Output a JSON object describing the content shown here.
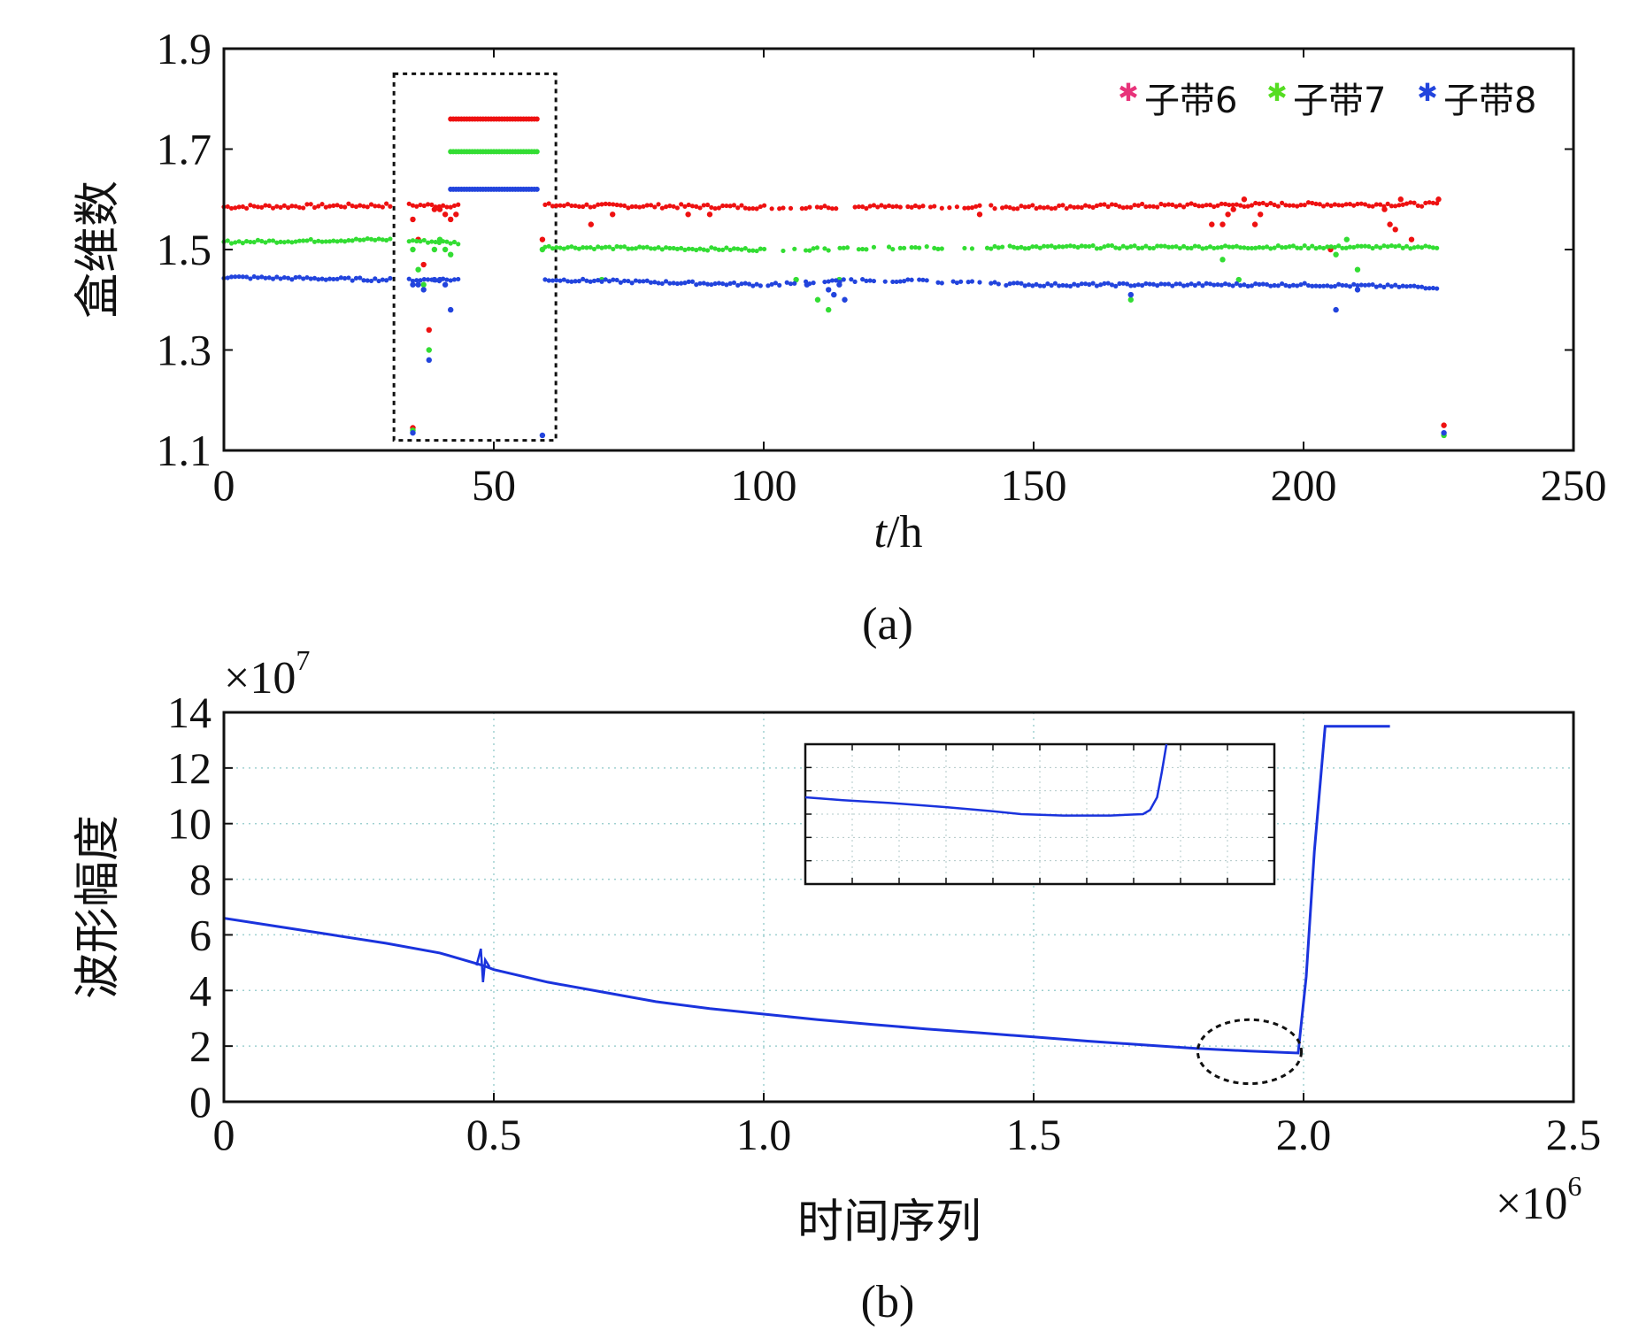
{
  "chart_data": [
    {
      "panel": "a",
      "type": "scatter",
      "caption": "(a)",
      "xlabel_italic": "t",
      "xlabel_unit": "/h",
      "ylabel": "盒维数",
      "xlim": [
        0,
        250
      ],
      "ylim": [
        1.1,
        1.9
      ],
      "xticks": [
        "0",
        "50",
        "100",
        "150",
        "200",
        "250"
      ],
      "yticks": [
        "1.1",
        "1.3",
        "1.5",
        "1.7",
        "1.9"
      ],
      "highlight_box_x": [
        31.5,
        61.5
      ],
      "highlight_box_y": [
        1.12,
        1.85
      ],
      "legend_position": "top-right",
      "series": [
        {
          "name": "子带6",
          "color": "#ee1111",
          "legend_color": "#e8337a",
          "base": [
            [
              0,
              1.585
            ],
            [
              30,
              1.588
            ],
            [
              60,
              1.588
            ],
            [
              100,
              1.585
            ],
            [
              150,
              1.585
            ],
            [
              200,
              1.59
            ],
            [
              225,
              1.59
            ]
          ],
          "gaps": [
            [
              31,
              34
            ],
            [
              44,
              59
            ]
          ],
          "noise": 0.004,
          "extra": [
            [
              35,
              1.56
            ],
            [
              36,
              1.52
            ],
            [
              37,
              1.47
            ],
            [
              38,
              1.34
            ],
            [
              39,
              1.58
            ],
            [
              40,
              1.58
            ],
            [
              41,
              1.57
            ],
            [
              42,
              1.56
            ],
            [
              43,
              1.57
            ],
            [
              35,
              1.145
            ],
            [
              59,
              1.52
            ],
            [
              68,
              1.55
            ],
            [
              72,
              1.57
            ],
            [
              86,
              1.57
            ],
            [
              90,
              1.57
            ],
            [
              140,
              1.57
            ],
            [
              183,
              1.55
            ],
            [
              185,
              1.55
            ],
            [
              186,
              1.57
            ],
            [
              187,
              1.58
            ],
            [
              189,
              1.6
            ],
            [
              191,
              1.55
            ],
            [
              192,
              1.57
            ],
            [
              205,
              1.5
            ],
            [
              215,
              1.58
            ],
            [
              216,
              1.55
            ],
            [
              217,
              1.54
            ],
            [
              218,
              1.6
            ],
            [
              220,
              1.52
            ],
            [
              225,
              1.6
            ],
            [
              226,
              1.15
            ]
          ],
          "line": {
            "x": [
              42,
              58
            ],
            "y": 1.76
          }
        },
        {
          "name": "子带7",
          "color": "#33dd33",
          "legend_color": "#55dd22",
          "base": [
            [
              0,
              1.515
            ],
            [
              30,
              1.52
            ],
            [
              60,
              1.505
            ],
            [
              100,
              1.5
            ],
            [
              150,
              1.505
            ],
            [
              200,
              1.505
            ],
            [
              225,
              1.505
            ]
          ],
          "gaps": [
            [
              31,
              34
            ],
            [
              44,
              59
            ]
          ],
          "noise": 0.003,
          "extra": [
            [
              35,
              1.5
            ],
            [
              36,
              1.46
            ],
            [
              37,
              1.43
            ],
            [
              38,
              1.3
            ],
            [
              39,
              1.5
            ],
            [
              40,
              1.52
            ],
            [
              41,
              1.5
            ],
            [
              42,
              1.49
            ],
            [
              35,
              1.14
            ],
            [
              59,
              1.5
            ],
            [
              70,
              1.44
            ],
            [
              106,
              1.44
            ],
            [
              110,
              1.4
            ],
            [
              112,
              1.38
            ],
            [
              114,
              1.44
            ],
            [
              168,
              1.4
            ],
            [
              185,
              1.48
            ],
            [
              188,
              1.44
            ],
            [
              206,
              1.49
            ],
            [
              208,
              1.52
            ],
            [
              210,
              1.46
            ],
            [
              226,
              1.13
            ]
          ],
          "line": {
            "x": [
              42,
              58
            ],
            "y": 1.695
          }
        },
        {
          "name": "子带8",
          "color": "#2244dd",
          "legend_color": "#2244dd",
          "base": [
            [
              0,
              1.445
            ],
            [
              30,
              1.44
            ],
            [
              60,
              1.44
            ],
            [
              100,
              1.43
            ],
            [
              120,
              1.44
            ],
            [
              150,
              1.43
            ],
            [
              200,
              1.43
            ],
            [
              225,
              1.425
            ]
          ],
          "gaps": [
            [
              31,
              34
            ],
            [
              44,
              59
            ]
          ],
          "noise": 0.003,
          "extra": [
            [
              35,
              1.43
            ],
            [
              36,
              1.43
            ],
            [
              37,
              1.42
            ],
            [
              38,
              1.28
            ],
            [
              39,
              1.44
            ],
            [
              40,
              1.44
            ],
            [
              41,
              1.43
            ],
            [
              42,
              1.38
            ],
            [
              35,
              1.135
            ],
            [
              59,
              1.13
            ],
            [
              108,
              1.43
            ],
            [
              112,
              1.42
            ],
            [
              113,
              1.41
            ],
            [
              114,
              1.43
            ],
            [
              115,
              1.4
            ],
            [
              168,
              1.41
            ],
            [
              206,
              1.38
            ],
            [
              210,
              1.42
            ],
            [
              226,
              1.135
            ]
          ],
          "line": {
            "x": [
              42,
              58
            ],
            "y": 1.62
          }
        }
      ]
    },
    {
      "panel": "b",
      "type": "line",
      "caption": "(b)",
      "xlabel": "时间序列",
      "ylabel": "波形幅度",
      "y_multiplier": "×10",
      "y_multiplier_exp": "7",
      "x_multiplier": "×10",
      "x_multiplier_exp": "6",
      "xlim": [
        0,
        2.5
      ],
      "ylim": [
        0,
        14
      ],
      "xticks": [
        "0",
        "0.5",
        "1.0",
        "1.5",
        "2.0",
        "2.5"
      ],
      "yticks": [
        "0",
        "2",
        "4",
        "6",
        "8",
        "10",
        "12",
        "14"
      ],
      "color": "#1a33dd",
      "series": [
        {
          "name": "波形幅度",
          "x": [
            0,
            0.1,
            0.2,
            0.3,
            0.4,
            0.48,
            0.5,
            0.6,
            0.7,
            0.8,
            0.9,
            1.0,
            1.1,
            1.2,
            1.3,
            1.4,
            1.5,
            1.6,
            1.7,
            1.8,
            1.9,
            1.99,
            2.005,
            2.02,
            2.04,
            2.16
          ],
          "y": [
            6.6,
            6.3,
            6.0,
            5.7,
            5.35,
            4.9,
            4.75,
            4.3,
            3.95,
            3.6,
            3.35,
            3.15,
            2.95,
            2.78,
            2.62,
            2.48,
            2.33,
            2.18,
            2.05,
            1.92,
            1.82,
            1.75,
            4.5,
            9.0,
            13.5,
            13.5
          ]
        }
      ],
      "spike": {
        "x": 0.48,
        "ymin": 4.3,
        "ymax": 5.5
      },
      "ellipse_region": {
        "cx": 1.9,
        "cy": 1.8,
        "rx": 0.096,
        "ry": 1.15
      },
      "inset": {
        "x": [
          0,
          0.08,
          0.18,
          0.3,
          0.4,
          0.46,
          0.55,
          0.65,
          0.72,
          0.735,
          0.75,
          0.76,
          0.77
        ],
        "y": [
          0.62,
          0.6,
          0.58,
          0.55,
          0.52,
          0.5,
          0.49,
          0.49,
          0.5,
          0.53,
          0.62,
          0.8,
          1.0
        ]
      }
    }
  ]
}
